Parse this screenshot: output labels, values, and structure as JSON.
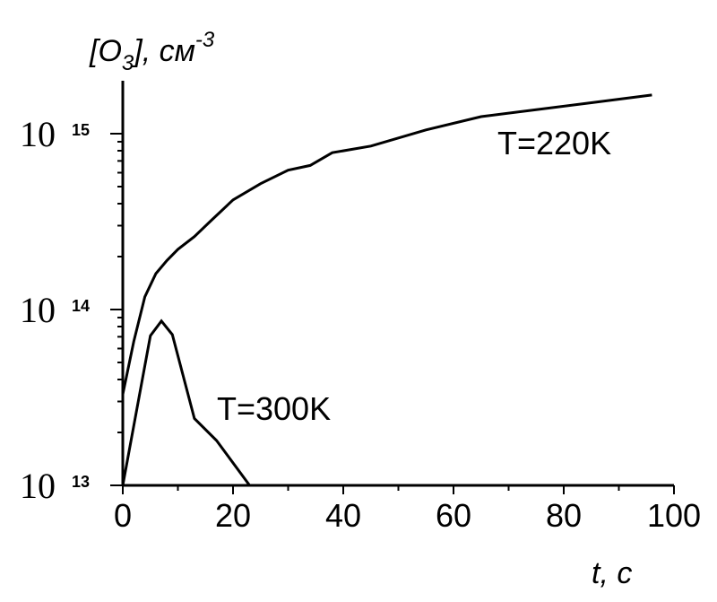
{
  "chart_data": {
    "type": "line",
    "ylabel": [
      "[O",
      "3",
      "], см",
      "-3"
    ],
    "xlabel": "t, c",
    "x_log": false,
    "y_log": true,
    "xlim": [
      0,
      100
    ],
    "xticks": [
      0,
      20,
      40,
      60,
      80,
      100
    ],
    "ylim": [
      10000000000000.0,
      2000000000000000.0
    ],
    "yticks": [
      {
        "value": 10000000000000.0,
        "label": "10",
        "sup": "13"
      },
      {
        "value": 100000000000000.0,
        "label": "10",
        "sup": "14"
      },
      {
        "value": 1000000000000000.0,
        "label": "10",
        "sup": "15"
      }
    ],
    "series": [
      {
        "name": "T=220K",
        "color": "#000000",
        "x": [
          0,
          2,
          4,
          6,
          8,
          10,
          13,
          16,
          20,
          25,
          30,
          34,
          38,
          45,
          55,
          65,
          75,
          85,
          96
        ],
        "values": [
          33000000000000.0,
          66000000000000.0,
          118000000000000.0,
          160000000000000.0,
          190000000000000.0,
          220000000000000.0,
          260000000000000.0,
          320000000000000.0,
          420000000000000.0,
          520000000000000.0,
          620000000000000.0,
          660000000000000.0,
          780000000000000.0,
          850000000000000.0,
          1050000000000000.0,
          1250000000000000.0,
          1370000000000000.0,
          1500000000000000.0,
          1660000000000000.0
        ]
      },
      {
        "name": "T=300K",
        "color": "#000000",
        "x": [
          0,
          5,
          7,
          9,
          13,
          17,
          23
        ],
        "values": [
          10000000000000.0,
          71000000000000.0,
          86000000000000.0,
          72000000000000.0,
          24000000000000.0,
          18000000000000.0,
          10000000000000.0
        ]
      }
    ]
  }
}
